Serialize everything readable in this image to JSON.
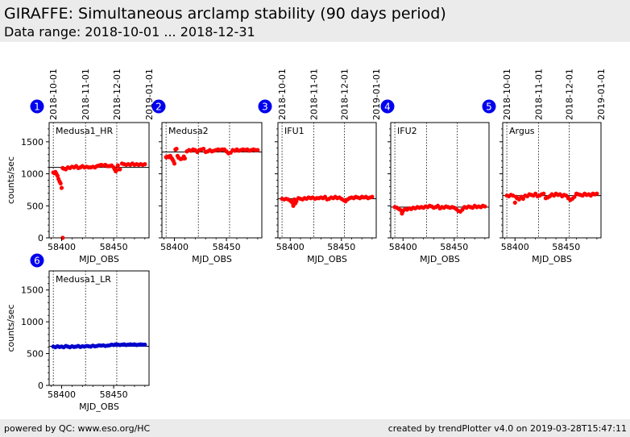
{
  "header": {
    "title": "GIRAFFE: Simultaneous arclamp stability (90 days period)",
    "subtitle": "Data range: 2018-10-01 ... 2018-12-31"
  },
  "footer": {
    "left": "powered by QC: www.eso.org/HC",
    "right": "created by trendPlotter v4.0 on 2019-03-28T15:47:11"
  },
  "axes": {
    "xlabel": "MJD_OBS",
    "ylabel": "counts/sec",
    "xlim": [
      58388,
      58484
    ],
    "ylim": [
      0,
      1800
    ],
    "xticks": [
      58400,
      58450
    ],
    "xtick_labels": [
      "58400",
      "58450"
    ],
    "yticks": [
      0,
      500,
      1000,
      1500
    ],
    "ytick_labels": [
      "0",
      "500",
      "1000",
      "1500"
    ],
    "date_lines_mjd": [
      58392,
      58423,
      58453,
      58484
    ],
    "date_labels": [
      "2018-10-01",
      "2018-11-01",
      "2018-12-01",
      "2019-01-01"
    ]
  },
  "chart_data": [
    {
      "type": "scatter",
      "badge": "1",
      "label": "Medusa1_HR",
      "color": "#ff0000",
      "reference": 1100,
      "x": [
        58392,
        58393,
        58394,
        58395,
        58396,
        58397,
        58398,
        58399,
        58400,
        58401,
        58401,
        58402,
        58404,
        58406,
        58408,
        58410,
        58412,
        58414,
        58416,
        58418,
        58420,
        58422,
        58424,
        58426,
        58428,
        58430,
        58432,
        58434,
        58436,
        58438,
        58440,
        58442,
        58444,
        58446,
        58448,
        58450,
        58451,
        58452,
        58453,
        58454,
        58456,
        58458,
        58460,
        58462,
        58464,
        58466,
        58468,
        58470,
        58472,
        58474,
        58476,
        58478,
        58480
      ],
      "y": [
        1020,
        1010,
        1030,
        1000,
        970,
        920,
        880,
        850,
        780,
        0,
        1090,
        1080,
        1070,
        1100,
        1090,
        1110,
        1100,
        1120,
        1090,
        1100,
        1120,
        1100,
        1110,
        1100,
        1100,
        1110,
        1100,
        1120,
        1130,
        1140,
        1130,
        1140,
        1120,
        1120,
        1130,
        1100,
        1070,
        1040,
        1060,
        1130,
        1070,
        1160,
        1150,
        1140,
        1150,
        1140,
        1160,
        1140,
        1150,
        1140,
        1150,
        1140,
        1150
      ]
    },
    {
      "type": "scatter",
      "badge": "2",
      "label": "Medusa2",
      "color": "#ff0000",
      "reference": 1340,
      "x": [
        58392,
        58393,
        58394,
        58395,
        58396,
        58397,
        58398,
        58399,
        58400,
        58401,
        58402,
        58403,
        58404,
        58406,
        58408,
        58409,
        58410,
        58412,
        58414,
        58416,
        58418,
        58420,
        58422,
        58424,
        58426,
        58428,
        58430,
        58432,
        58434,
        58436,
        58438,
        58440,
        58442,
        58444,
        58446,
        58448,
        58450,
        58452,
        58454,
        58456,
        58458,
        58460,
        58462,
        58464,
        58466,
        58468,
        58470,
        58472,
        58474,
        58476,
        58478,
        58480
      ],
      "y": [
        1260,
        1260,
        1270,
        1260,
        1280,
        1250,
        1230,
        1200,
        1160,
        1380,
        1390,
        1280,
        1250,
        1230,
        1240,
        1270,
        1240,
        1350,
        1370,
        1360,
        1380,
        1370,
        1340,
        1370,
        1380,
        1390,
        1340,
        1350,
        1370,
        1350,
        1360,
        1370,
        1380,
        1370,
        1380,
        1380,
        1350,
        1320,
        1330,
        1370,
        1360,
        1380,
        1360,
        1370,
        1380,
        1370,
        1380,
        1360,
        1370,
        1380,
        1370,
        1370
      ]
    },
    {
      "type": "scatter",
      "badge": "3",
      "label": "IFU1",
      "color": "#ff0000",
      "reference": 610,
      "x": [
        58392,
        58394,
        58396,
        58398,
        58400,
        58401,
        58402,
        58403,
        58404,
        58405,
        58406,
        58408,
        58410,
        58412,
        58414,
        58416,
        58418,
        58420,
        58422,
        58424,
        58426,
        58428,
        58430,
        58432,
        58434,
        58436,
        58438,
        58440,
        58442,
        58444,
        58446,
        58448,
        58450,
        58452,
        58454,
        58456,
        58458,
        58460,
        58462,
        58464,
        58466,
        58468,
        58470,
        58472,
        58474,
        58476,
        58478,
        58480
      ],
      "y": [
        610,
        600,
        610,
        600,
        580,
        570,
        550,
        500,
        600,
        540,
        570,
        620,
        610,
        600,
        620,
        610,
        630,
        620,
        630,
        610,
        620,
        620,
        630,
        620,
        640,
        600,
        610,
        630,
        620,
        640,
        620,
        630,
        610,
        590,
        570,
        600,
        620,
        630,
        620,
        640,
        630,
        620,
        640,
        630,
        640,
        620,
        630,
        640
      ]
    },
    {
      "type": "scatter",
      "badge": "4",
      "label": "IFU2",
      "color": "#ff0000",
      "reference": 480,
      "x": [
        58392,
        58394,
        58396,
        58398,
        58399,
        58400,
        58402,
        58404,
        58406,
        58408,
        58410,
        58412,
        58414,
        58416,
        58418,
        58420,
        58422,
        58424,
        58426,
        58428,
        58430,
        58432,
        58434,
        58436,
        58438,
        58440,
        58442,
        58444,
        58446,
        58448,
        58450,
        58452,
        58454,
        58456,
        58458,
        58460,
        58462,
        58464,
        58466,
        58468,
        58470,
        58472,
        58474,
        58476,
        58478,
        58480
      ],
      "y": [
        480,
        470,
        450,
        430,
        380,
        420,
        450,
        440,
        460,
        450,
        470,
        460,
        480,
        470,
        480,
        470,
        490,
        480,
        500,
        490,
        470,
        480,
        500,
        460,
        480,
        470,
        490,
        480,
        470,
        480,
        470,
        450,
        420,
        410,
        440,
        480,
        470,
        490,
        480,
        470,
        500,
        480,
        490,
        480,
        500,
        490
      ]
    },
    {
      "type": "scatter",
      "badge": "5",
      "label": "Argus",
      "color": "#ff0000",
      "reference": 660,
      "x": [
        58392,
        58394,
        58396,
        58398,
        58400,
        58401,
        58402,
        58404,
        58406,
        58408,
        58410,
        58412,
        58414,
        58416,
        58418,
        58420,
        58422,
        58424,
        58426,
        58428,
        58430,
        58432,
        58434,
        58436,
        58438,
        58440,
        58442,
        58444,
        58446,
        58448,
        58450,
        58452,
        58454,
        58456,
        58458,
        58460,
        58462,
        58464,
        58466,
        58468,
        58470,
        58472,
        58474,
        58476,
        58478,
        58480
      ],
      "y": [
        660,
        650,
        670,
        660,
        550,
        640,
        620,
        600,
        640,
        610,
        660,
        650,
        680,
        670,
        660,
        690,
        650,
        660,
        680,
        690,
        620,
        630,
        650,
        680,
        660,
        690,
        670,
        680,
        650,
        670,
        660,
        620,
        590,
        610,
        640,
        690,
        680,
        670,
        660,
        690,
        670,
        680,
        660,
        690,
        680,
        690
      ]
    },
    {
      "type": "scatter",
      "badge": "6",
      "label": "Medusa1_LR",
      "color": "#0000cc",
      "reference": 615,
      "x": [
        58392,
        58394,
        58396,
        58398,
        58400,
        58402,
        58404,
        58406,
        58408,
        58410,
        58412,
        58414,
        58416,
        58418,
        58420,
        58422,
        58424,
        58426,
        58428,
        58430,
        58432,
        58434,
        58436,
        58438,
        58440,
        58442,
        58444,
        58446,
        58448,
        58450,
        58452,
        58454,
        58456,
        58458,
        58460,
        58462,
        58464,
        58466,
        58468,
        58470,
        58472,
        58474,
        58476,
        58478,
        58480
      ],
      "y": [
        610,
        600,
        615,
        605,
        610,
        600,
        620,
        610,
        600,
        615,
        605,
        610,
        620,
        605,
        615,
        610,
        620,
        615,
        610,
        625,
        615,
        620,
        630,
        625,
        630,
        620,
        625,
        630,
        640,
        635,
        645,
        640,
        635,
        640,
        645,
        635,
        640,
        645,
        640,
        645,
        635,
        640,
        645,
        640,
        640
      ]
    }
  ]
}
